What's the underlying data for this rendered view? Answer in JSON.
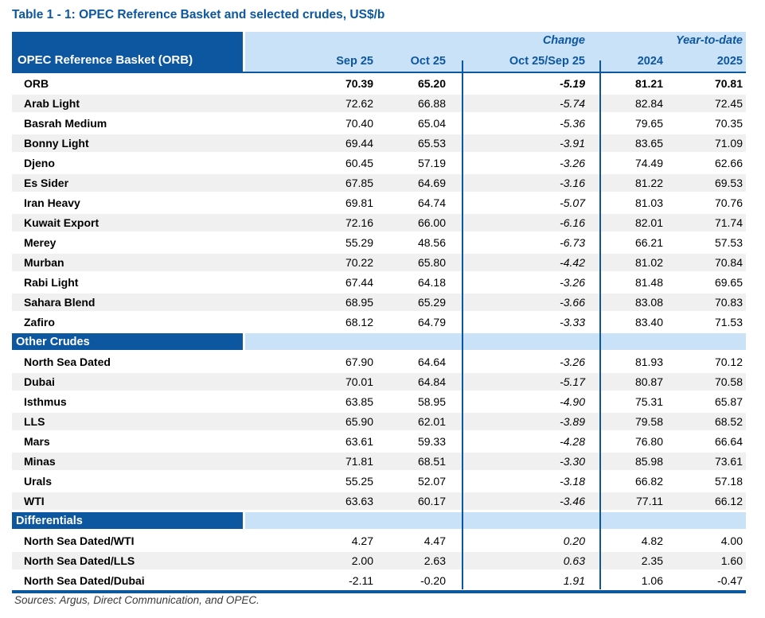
{
  "title": "Table 1 - 1: OPEC Reference Basket and selected crudes, US$/b",
  "table": {
    "corner_label": "OPEC Reference Basket (ORB)",
    "group_headers": {
      "change": "Change",
      "ytd": "Year-to-date"
    },
    "columns": [
      "Sep 25",
      "Oct 25",
      "Oct 25/Sep 25",
      "2024",
      "2025"
    ],
    "sections": [
      {
        "name": null,
        "rows": [
          {
            "label": "ORB",
            "values": [
              "70.39",
              "65.20",
              "-5.19",
              "81.21",
              "70.81"
            ],
            "emphasis": true
          },
          {
            "label": "Arab Light",
            "values": [
              "72.62",
              "66.88",
              "-5.74",
              "82.84",
              "72.45"
            ]
          },
          {
            "label": "Basrah Medium",
            "values": [
              "70.40",
              "65.04",
              "-5.36",
              "79.65",
              "70.35"
            ]
          },
          {
            "label": "Bonny Light",
            "values": [
              "69.44",
              "65.53",
              "-3.91",
              "83.65",
              "71.09"
            ]
          },
          {
            "label": "Djeno",
            "values": [
              "60.45",
              "57.19",
              "-3.26",
              "74.49",
              "62.66"
            ]
          },
          {
            "label": "Es Sider",
            "values": [
              "67.85",
              "64.69",
              "-3.16",
              "81.22",
              "69.53"
            ]
          },
          {
            "label": "Iran Heavy",
            "values": [
              "69.81",
              "64.74",
              "-5.07",
              "81.03",
              "70.76"
            ]
          },
          {
            "label": "Kuwait Export",
            "values": [
              "72.16",
              "66.00",
              "-6.16",
              "82.01",
              "71.74"
            ]
          },
          {
            "label": "Merey",
            "values": [
              "55.29",
              "48.56",
              "-6.73",
              "66.21",
              "57.53"
            ]
          },
          {
            "label": "Murban",
            "values": [
              "70.22",
              "65.80",
              "-4.42",
              "81.02",
              "70.84"
            ]
          },
          {
            "label": "Rabi Light",
            "values": [
              "67.44",
              "64.18",
              "-3.26",
              "81.48",
              "69.65"
            ]
          },
          {
            "label": "Sahara Blend",
            "values": [
              "68.95",
              "65.29",
              "-3.66",
              "83.08",
              "70.83"
            ]
          },
          {
            "label": "Zafiro",
            "values": [
              "68.12",
              "64.79",
              "-3.33",
              "83.40",
              "71.53"
            ]
          }
        ]
      },
      {
        "name": "Other Crudes",
        "rows": [
          {
            "label": "North Sea Dated",
            "values": [
              "67.90",
              "64.64",
              "-3.26",
              "81.93",
              "70.12"
            ]
          },
          {
            "label": "Dubai",
            "values": [
              "70.01",
              "64.84",
              "-5.17",
              "80.87",
              "70.58"
            ]
          },
          {
            "label": "Isthmus",
            "values": [
              "63.85",
              "58.95",
              "-4.90",
              "75.31",
              "65.87"
            ]
          },
          {
            "label": "LLS",
            "values": [
              "65.90",
              "62.01",
              "-3.89",
              "79.58",
              "68.52"
            ]
          },
          {
            "label": "Mars",
            "values": [
              "63.61",
              "59.33",
              "-4.28",
              "76.80",
              "66.64"
            ]
          },
          {
            "label": "Minas",
            "values": [
              "71.81",
              "68.51",
              "-3.30",
              "85.98",
              "73.61"
            ]
          },
          {
            "label": "Urals",
            "values": [
              "55.25",
              "52.07",
              "-3.18",
              "66.82",
              "57.18"
            ]
          },
          {
            "label": "WTI",
            "values": [
              "63.63",
              "60.17",
              "-3.46",
              "77.11",
              "66.12"
            ]
          }
        ]
      },
      {
        "name": "Differentials",
        "rows": [
          {
            "label": "North Sea Dated/WTI",
            "values": [
              "4.27",
              "4.47",
              "0.20",
              "4.82",
              "4.00"
            ]
          },
          {
            "label": "North Sea Dated/LLS",
            "values": [
              "2.00",
              "2.63",
              "0.63",
              "2.35",
              "1.60"
            ]
          },
          {
            "label": "North Sea Dated/Dubai",
            "values": [
              "-2.11",
              "-0.20",
              "1.91",
              "1.06",
              "-0.47"
            ]
          }
        ]
      }
    ]
  },
  "footer": {
    "sources": "Sources:  Argus, Direct Communication, and OPEC."
  },
  "colors": {
    "blue": "#0d57a0",
    "light_blue": "#c9e2f8",
    "zebra": "#f0f0f0"
  }
}
